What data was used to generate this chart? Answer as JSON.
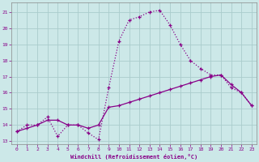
{
  "xlabel": "Windchill (Refroidissement éolien,°C)",
  "bg_color": "#cce8e8",
  "grid_color": "#aacccc",
  "line_color": "#880088",
  "xlim": [
    -0.5,
    23.5
  ],
  "ylim": [
    12.8,
    21.6
  ],
  "yticks": [
    13,
    14,
    15,
    16,
    17,
    18,
    19,
    20,
    21
  ],
  "xticks": [
    0,
    1,
    2,
    3,
    4,
    5,
    6,
    7,
    8,
    9,
    10,
    11,
    12,
    13,
    14,
    15,
    16,
    17,
    18,
    19,
    20,
    21,
    22,
    23
  ],
  "series_dotted_x": [
    0,
    1,
    2,
    3,
    4,
    5,
    6,
    7,
    8,
    9,
    10,
    11,
    12,
    13,
    14,
    15,
    16,
    17,
    18,
    19,
    20,
    21,
    22,
    23
  ],
  "series_dotted_y": [
    13.6,
    14.0,
    14.0,
    14.5,
    13.3,
    14.0,
    14.0,
    13.5,
    13.1,
    16.3,
    19.2,
    20.5,
    20.7,
    21.0,
    21.1,
    20.2,
    19.0,
    18.0,
    17.5,
    17.1,
    17.1,
    16.3,
    16.0,
    15.2
  ],
  "series_solid_x": [
    0,
    1,
    2,
    3,
    4,
    5,
    6,
    7,
    8,
    9,
    10,
    11,
    12,
    13,
    14,
    15,
    16,
    17,
    18,
    19,
    20,
    21,
    22,
    23
  ],
  "series_solid_y": [
    13.6,
    13.8,
    14.0,
    14.3,
    14.3,
    14.0,
    14.0,
    13.8,
    14.0,
    15.1,
    15.2,
    15.4,
    15.6,
    15.8,
    16.0,
    16.2,
    16.4,
    16.6,
    16.8,
    17.0,
    17.1,
    16.5,
    16.0,
    15.2
  ]
}
